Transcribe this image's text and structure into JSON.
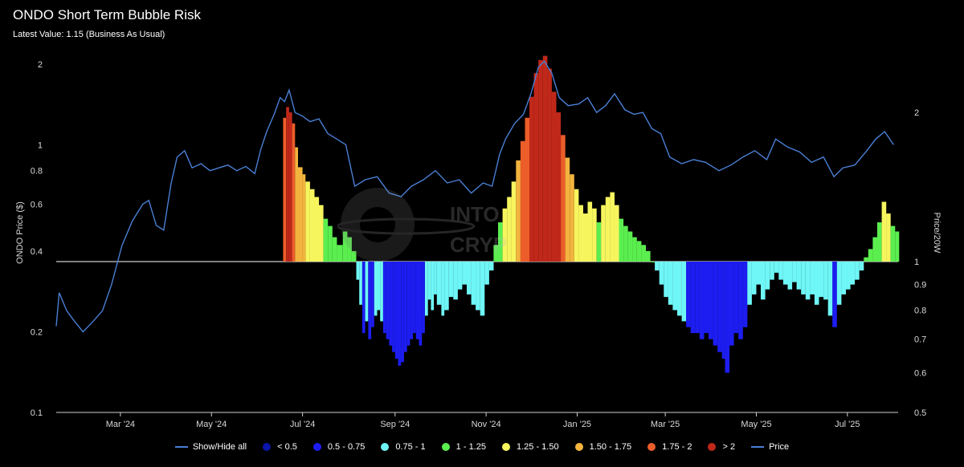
{
  "header": {
    "title": "ONDO Short Term Bubble Risk",
    "subtitle": "Latest Value: 1.15 (Business As Usual)"
  },
  "watermark": {
    "line1": "INTO",
    "line2": "CRYP"
  },
  "chart_data": {
    "type": "line+bar",
    "title": "ONDO Short Term Bubble Risk",
    "subtitle": "Latest Value: 1.15 (Business As Usual)",
    "log_scale": true,
    "grid": false,
    "legend_position": "bottom",
    "x_range": [
      "2024-01-18",
      "2025-08-04"
    ],
    "x_ticks": [
      "Mar '24",
      "May '24",
      "Jul '24",
      "Sep '24",
      "Nov '24",
      "Jan '25",
      "Mar '25",
      "May '25",
      "Jul '25"
    ],
    "y_left": {
      "label": "ONDO Price ($)",
      "range": [
        0.1,
        2
      ],
      "ticks": [
        "2",
        "1",
        "0.8",
        "0.6",
        "0.4",
        "0.2",
        "0.1"
      ]
    },
    "y_right": {
      "label": "Price/20W",
      "ticks": [
        "2",
        "1",
        "0.9",
        "0.8",
        "0.7",
        "0.6",
        "0.5"
      ]
    },
    "legend": [
      {
        "label": "Show/Hide all",
        "color": "#4a7fd4",
        "kind": "line"
      },
      {
        "label": "< 0.5",
        "color": "#0a16a8",
        "kind": "dot"
      },
      {
        "label": "0.5 - 0.75",
        "color": "#1d1df2",
        "kind": "dot"
      },
      {
        "label": "0.75 - 1",
        "color": "#6ff6f6",
        "kind": "dot"
      },
      {
        "label": "1 - 1.25",
        "color": "#5bee4f",
        "kind": "dot"
      },
      {
        "label": "1.25 - 1.50",
        "color": "#f7f55e",
        "kind": "dot"
      },
      {
        "label": "1.50 - 1.75",
        "color": "#f3b43e",
        "kind": "dot"
      },
      {
        "label": "1.75 - 2",
        "color": "#ec5d2a",
        "kind": "dot"
      },
      {
        "label": "> 2",
        "color": "#c0281a",
        "kind": "dot"
      },
      {
        "label": "Price",
        "color": "#4a7fd4",
        "kind": "line"
      }
    ],
    "series": [
      {
        "name": "Price",
        "type": "line",
        "axis": "left",
        "color": "#4a7fd4",
        "points": [
          [
            "2024-01-18",
            0.21
          ],
          [
            "2024-01-20",
            0.28
          ],
          [
            "2024-01-25",
            0.24
          ],
          [
            "2024-01-30",
            0.22
          ],
          [
            "2024-02-05",
            0.2
          ],
          [
            "2024-02-12",
            0.22
          ],
          [
            "2024-02-18",
            0.24
          ],
          [
            "2024-02-24",
            0.3
          ],
          [
            "2024-03-02",
            0.42
          ],
          [
            "2024-03-09",
            0.52
          ],
          [
            "2024-03-16",
            0.6
          ],
          [
            "2024-03-20",
            0.62
          ],
          [
            "2024-03-25",
            0.5
          ],
          [
            "2024-03-30",
            0.48
          ],
          [
            "2024-04-04",
            0.72
          ],
          [
            "2024-04-08",
            0.9
          ],
          [
            "2024-04-13",
            0.95
          ],
          [
            "2024-04-18",
            0.82
          ],
          [
            "2024-04-24",
            0.85
          ],
          [
            "2024-04-30",
            0.8
          ],
          [
            "2024-05-06",
            0.82
          ],
          [
            "2024-05-12",
            0.84
          ],
          [
            "2024-05-18",
            0.8
          ],
          [
            "2024-05-24",
            0.83
          ],
          [
            "2024-05-30",
            0.78
          ],
          [
            "2024-06-03",
            0.96
          ],
          [
            "2024-06-07",
            1.12
          ],
          [
            "2024-06-12",
            1.3
          ],
          [
            "2024-06-16",
            1.5
          ],
          [
            "2024-06-19",
            1.45
          ],
          [
            "2024-06-22",
            1.6
          ],
          [
            "2024-06-26",
            1.32
          ],
          [
            "2024-07-01",
            1.28
          ],
          [
            "2024-07-06",
            1.22
          ],
          [
            "2024-07-12",
            1.25
          ],
          [
            "2024-07-18",
            1.1
          ],
          [
            "2024-07-24",
            1.05
          ],
          [
            "2024-07-30",
            1.0
          ],
          [
            "2024-08-05",
            0.7
          ],
          [
            "2024-08-12",
            0.74
          ],
          [
            "2024-08-20",
            0.76
          ],
          [
            "2024-08-28",
            0.66
          ],
          [
            "2024-09-05",
            0.64
          ],
          [
            "2024-09-12",
            0.7
          ],
          [
            "2024-09-20",
            0.74
          ],
          [
            "2024-09-28",
            0.8
          ],
          [
            "2024-10-06",
            0.72
          ],
          [
            "2024-10-14",
            0.74
          ],
          [
            "2024-10-22",
            0.66
          ],
          [
            "2024-10-30",
            0.72
          ],
          [
            "2024-11-05",
            0.7
          ],
          [
            "2024-11-10",
            0.92
          ],
          [
            "2024-11-14",
            1.05
          ],
          [
            "2024-11-20",
            1.2
          ],
          [
            "2024-11-26",
            1.3
          ],
          [
            "2024-12-01",
            1.55
          ],
          [
            "2024-12-06",
            1.95
          ],
          [
            "2024-12-10",
            2.05
          ],
          [
            "2024-12-15",
            1.85
          ],
          [
            "2024-12-20",
            1.5
          ],
          [
            "2024-12-26",
            1.4
          ],
          [
            "2025-01-02",
            1.42
          ],
          [
            "2025-01-08",
            1.5
          ],
          [
            "2025-01-14",
            1.32
          ],
          [
            "2025-01-20",
            1.4
          ],
          [
            "2025-01-26",
            1.55
          ],
          [
            "2025-02-02",
            1.35
          ],
          [
            "2025-02-08",
            1.3
          ],
          [
            "2025-02-14",
            1.32
          ],
          [
            "2025-02-20",
            1.15
          ],
          [
            "2025-02-26",
            1.1
          ],
          [
            "2025-03-04",
            0.9
          ],
          [
            "2025-03-12",
            0.85
          ],
          [
            "2025-03-20",
            0.88
          ],
          [
            "2025-03-28",
            0.86
          ],
          [
            "2025-04-06",
            0.8
          ],
          [
            "2025-04-14",
            0.84
          ],
          [
            "2025-04-22",
            0.9
          ],
          [
            "2025-04-30",
            0.95
          ],
          [
            "2025-05-08",
            0.88
          ],
          [
            "2025-05-14",
            1.05
          ],
          [
            "2025-05-22",
            0.98
          ],
          [
            "2025-05-30",
            0.94
          ],
          [
            "2025-06-07",
            0.86
          ],
          [
            "2025-06-15",
            0.9
          ],
          [
            "2025-06-22",
            0.76
          ],
          [
            "2025-06-28",
            0.82
          ],
          [
            "2025-07-06",
            0.84
          ],
          [
            "2025-07-14",
            0.95
          ],
          [
            "2025-07-20",
            1.05
          ],
          [
            "2025-07-26",
            1.12
          ],
          [
            "2025-08-01",
            1.0
          ]
        ]
      },
      {
        "name": "Price/20W",
        "type": "bar",
        "axis": "right",
        "baseline": 1,
        "points": [
          [
            "2024-06-18",
            1.95
          ],
          [
            "2024-06-20",
            2.05
          ],
          [
            "2024-06-22",
            2.0
          ],
          [
            "2024-06-24",
            1.9
          ],
          [
            "2024-06-26",
            1.7
          ],
          [
            "2024-06-28",
            1.55
          ],
          [
            "2024-07-01",
            1.5
          ],
          [
            "2024-07-03",
            1.45
          ],
          [
            "2024-07-06",
            1.4
          ],
          [
            "2024-07-09",
            1.35
          ],
          [
            "2024-07-12",
            1.3
          ],
          [
            "2024-07-15",
            1.22
          ],
          [
            "2024-07-18",
            1.18
          ],
          [
            "2024-07-21",
            1.12
          ],
          [
            "2024-07-24",
            1.08
          ],
          [
            "2024-07-28",
            1.15
          ],
          [
            "2024-07-31",
            1.12
          ],
          [
            "2024-08-03",
            1.05
          ],
          [
            "2024-08-06",
            0.92
          ],
          [
            "2024-08-08",
            0.82
          ],
          [
            "2024-08-10",
            0.72
          ],
          [
            "2024-08-12",
            0.76
          ],
          [
            "2024-08-14",
            0.7
          ],
          [
            "2024-08-16",
            0.74
          ],
          [
            "2024-08-18",
            0.78
          ],
          [
            "2024-08-20",
            0.8
          ],
          [
            "2024-08-22",
            0.76
          ],
          [
            "2024-08-24",
            0.72
          ],
          [
            "2024-08-26",
            0.7
          ],
          [
            "2024-08-28",
            0.68
          ],
          [
            "2024-08-30",
            0.66
          ],
          [
            "2024-09-01",
            0.64
          ],
          [
            "2024-09-03",
            0.62
          ],
          [
            "2024-09-05",
            0.63
          ],
          [
            "2024-09-07",
            0.66
          ],
          [
            "2024-09-09",
            0.68
          ],
          [
            "2024-09-11",
            0.7
          ],
          [
            "2024-09-13",
            0.72
          ],
          [
            "2024-09-15",
            0.7
          ],
          [
            "2024-09-17",
            0.68
          ],
          [
            "2024-09-19",
            0.72
          ],
          [
            "2024-09-21",
            0.78
          ],
          [
            "2024-09-23",
            0.84
          ],
          [
            "2024-09-25",
            0.8
          ],
          [
            "2024-09-27",
            0.86
          ],
          [
            "2024-09-29",
            0.82
          ],
          [
            "2024-10-02",
            0.78
          ],
          [
            "2024-10-04",
            0.8
          ],
          [
            "2024-10-07",
            0.85
          ],
          [
            "2024-10-10",
            0.84
          ],
          [
            "2024-10-13",
            0.88
          ],
          [
            "2024-10-16",
            0.9
          ],
          [
            "2024-10-19",
            0.86
          ],
          [
            "2024-10-22",
            0.82
          ],
          [
            "2024-10-25",
            0.8
          ],
          [
            "2024-10-28",
            0.78
          ],
          [
            "2024-10-31",
            0.9
          ],
          [
            "2024-11-03",
            0.96
          ],
          [
            "2024-11-06",
            1.08
          ],
          [
            "2024-11-09",
            1.2
          ],
          [
            "2024-11-12",
            1.28
          ],
          [
            "2024-11-15",
            1.35
          ],
          [
            "2024-11-18",
            1.45
          ],
          [
            "2024-11-21",
            1.6
          ],
          [
            "2024-11-24",
            1.75
          ],
          [
            "2024-11-27",
            1.95
          ],
          [
            "2024-11-30",
            2.15
          ],
          [
            "2024-12-03",
            2.4
          ],
          [
            "2024-12-06",
            2.55
          ],
          [
            "2024-12-09",
            2.6
          ],
          [
            "2024-12-12",
            2.45
          ],
          [
            "2024-12-15",
            2.2
          ],
          [
            "2024-12-18",
            2.0
          ],
          [
            "2024-12-21",
            1.8
          ],
          [
            "2024-12-24",
            1.62
          ],
          [
            "2024-12-27",
            1.5
          ],
          [
            "2024-12-30",
            1.4
          ],
          [
            "2025-01-02",
            1.3
          ],
          [
            "2025-01-05",
            1.25
          ],
          [
            "2025-01-08",
            1.32
          ],
          [
            "2025-01-11",
            1.28
          ],
          [
            "2025-01-14",
            1.2
          ],
          [
            "2025-01-17",
            1.3
          ],
          [
            "2025-01-20",
            1.35
          ],
          [
            "2025-01-23",
            1.38
          ],
          [
            "2025-01-26",
            1.3
          ],
          [
            "2025-01-29",
            1.22
          ],
          [
            "2025-02-01",
            1.18
          ],
          [
            "2025-02-04",
            1.15
          ],
          [
            "2025-02-07",
            1.12
          ],
          [
            "2025-02-10",
            1.1
          ],
          [
            "2025-02-13",
            1.08
          ],
          [
            "2025-02-16",
            1.05
          ],
          [
            "2025-02-19",
            1.0
          ],
          [
            "2025-02-22",
            0.96
          ],
          [
            "2025-02-25",
            0.9
          ],
          [
            "2025-02-28",
            0.85
          ],
          [
            "2025-03-03",
            0.82
          ],
          [
            "2025-03-06",
            0.8
          ],
          [
            "2025-03-09",
            0.78
          ],
          [
            "2025-03-12",
            0.76
          ],
          [
            "2025-03-15",
            0.74
          ],
          [
            "2025-03-18",
            0.72
          ],
          [
            "2025-03-21",
            0.72
          ],
          [
            "2025-03-24",
            0.7
          ],
          [
            "2025-03-27",
            0.72
          ],
          [
            "2025-03-30",
            0.7
          ],
          [
            "2025-04-02",
            0.68
          ],
          [
            "2025-04-05",
            0.66
          ],
          [
            "2025-04-08",
            0.64
          ],
          [
            "2025-04-10",
            0.6
          ],
          [
            "2025-04-13",
            0.68
          ],
          [
            "2025-04-16",
            0.72
          ],
          [
            "2025-04-19",
            0.7
          ],
          [
            "2025-04-22",
            0.74
          ],
          [
            "2025-04-25",
            0.82
          ],
          [
            "2025-04-28",
            0.86
          ],
          [
            "2025-05-01",
            0.9
          ],
          [
            "2025-05-04",
            0.84
          ],
          [
            "2025-05-07",
            0.88
          ],
          [
            "2025-05-10",
            0.92
          ],
          [
            "2025-05-13",
            0.95
          ],
          [
            "2025-05-16",
            0.92
          ],
          [
            "2025-05-19",
            0.9
          ],
          [
            "2025-05-22",
            0.88
          ],
          [
            "2025-05-25",
            0.91
          ],
          [
            "2025-05-28",
            0.88
          ],
          [
            "2025-05-31",
            0.86
          ],
          [
            "2025-06-03",
            0.84
          ],
          [
            "2025-06-06",
            0.86
          ],
          [
            "2025-06-09",
            0.82
          ],
          [
            "2025-06-12",
            0.85
          ],
          [
            "2025-06-15",
            0.84
          ],
          [
            "2025-06-18",
            0.78
          ],
          [
            "2025-06-21",
            0.74
          ],
          [
            "2025-06-24",
            0.82
          ],
          [
            "2025-06-27",
            0.86
          ],
          [
            "2025-06-30",
            0.88
          ],
          [
            "2025-07-03",
            0.9
          ],
          [
            "2025-07-06",
            0.92
          ],
          [
            "2025-07-09",
            0.96
          ],
          [
            "2025-07-12",
            1.02
          ],
          [
            "2025-07-15",
            1.06
          ],
          [
            "2025-07-18",
            1.12
          ],
          [
            "2025-07-21",
            1.2
          ],
          [
            "2025-07-24",
            1.32
          ],
          [
            "2025-07-27",
            1.25
          ],
          [
            "2025-07-30",
            1.18
          ],
          [
            "2025-08-02",
            1.15
          ]
        ]
      }
    ]
  }
}
